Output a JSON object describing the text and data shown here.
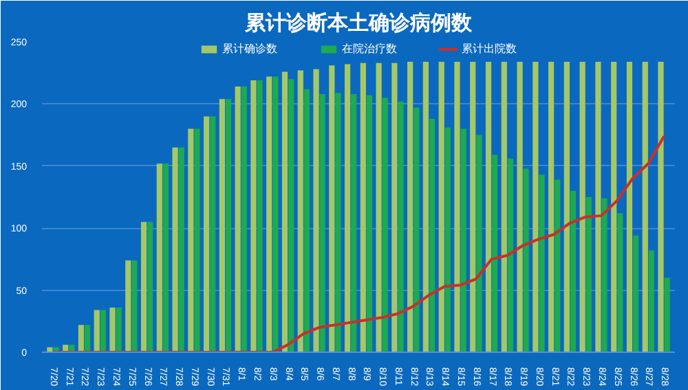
{
  "chart_data": {
    "type": "bar",
    "title": "累计诊断本土确诊病例数",
    "categories": [
      "7/20",
      "7/21",
      "7/22",
      "7/23",
      "7/24",
      "7/25",
      "7/26",
      "7/27",
      "7/28",
      "7/29",
      "7/30",
      "7/31",
      "8/1",
      "8/2",
      "8/3",
      "8/4",
      "8/5",
      "8/6",
      "8/7",
      "8/8",
      "8/9",
      "8/10",
      "8/11",
      "8/12",
      "8/13",
      "8/14",
      "8/15",
      "8/16",
      "8/17",
      "8/18",
      "8/19",
      "8/20",
      "8/21",
      "8/22",
      "8/23",
      "8/24",
      "8/25",
      "8/26",
      "8/27",
      "8/28"
    ],
    "series": [
      {
        "name": "累计确诊数",
        "color": "#a5c866",
        "values": [
          4,
          6,
          22,
          34,
          36,
          74,
          105,
          152,
          165,
          180,
          190,
          204,
          214,
          219,
          222,
          226,
          227,
          228,
          231,
          232,
          233,
          233,
          233,
          234,
          234,
          234,
          234,
          234,
          234,
          234,
          234,
          234,
          234,
          234,
          234,
          234,
          234,
          234,
          234,
          234
        ]
      },
      {
        "name": "在院治疗数",
        "color": "#1eaa50",
        "values": [
          4,
          6,
          22,
          34,
          36,
          74,
          105,
          152,
          165,
          180,
          190,
          204,
          214,
          219,
          222,
          220,
          212,
          208,
          209,
          208,
          207,
          205,
          202,
          197,
          188,
          181,
          180,
          175,
          159,
          156,
          148,
          143,
          139,
          130,
          125,
          124,
          112,
          94,
          82,
          60
        ]
      },
      {
        "name": "累计出院数",
        "type": "line",
        "color": "#c8302a",
        "values": [
          0,
          0,
          0,
          0,
          0,
          0,
          0,
          0,
          0,
          0,
          0,
          0,
          0,
          0,
          0,
          6,
          15,
          20,
          22,
          24,
          26,
          28,
          31,
          37,
          46,
          53,
          54,
          59,
          75,
          78,
          86,
          91,
          95,
          104,
          109,
          110,
          122,
          140,
          152,
          174
        ]
      }
    ],
    "ylim": [
      0,
      250
    ],
    "yticks": [
      0,
      50,
      100,
      150,
      200,
      250
    ],
    "grid": "y",
    "legend": "top"
  }
}
